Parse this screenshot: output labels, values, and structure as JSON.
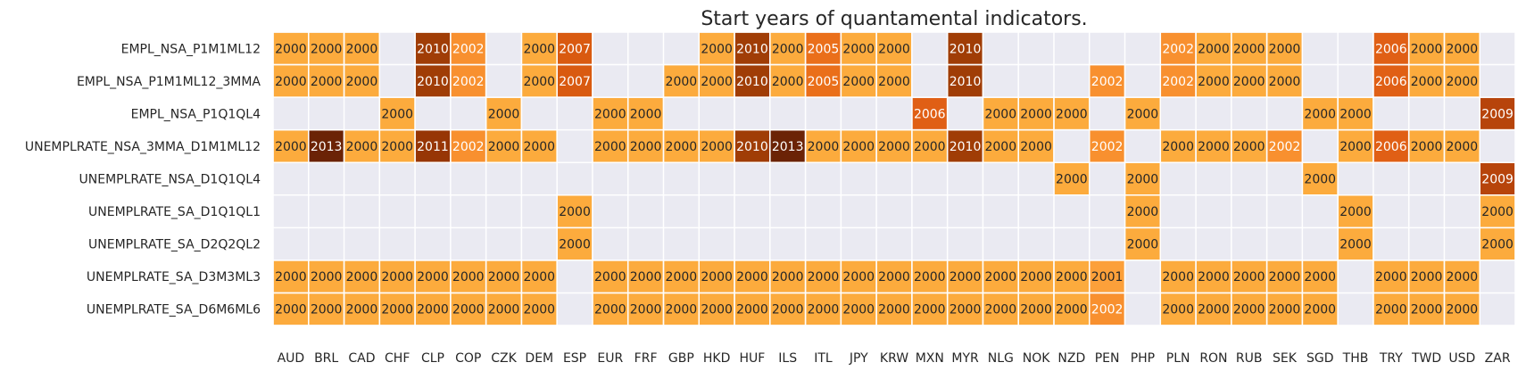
{
  "chart_data": {
    "type": "heatmap",
    "title": "Start years of quantamental indicators.",
    "xlabel": "",
    "ylabel": "",
    "x": [
      "AUD",
      "BRL",
      "CAD",
      "CHF",
      "CLP",
      "COP",
      "CZK",
      "DEM",
      "ESP",
      "EUR",
      "FRF",
      "GBP",
      "HKD",
      "HUF",
      "ILS",
      "ITL",
      "JPY",
      "KRW",
      "MXN",
      "MYR",
      "NLG",
      "NOK",
      "NZD",
      "PEN",
      "PHP",
      "PLN",
      "RON",
      "RUB",
      "SEK",
      "SGD",
      "THB",
      "TRY",
      "TWD",
      "USD",
      "ZAR"
    ],
    "y": [
      "EMPL_NSA_P1M1ML12",
      "EMPL_NSA_P1M1ML12_3MMA",
      "EMPL_NSA_P1Q1QL4",
      "UNEMPLRATE_NSA_3MMA_D1M1ML12",
      "UNEMPLRATE_NSA_D1Q1QL4",
      "UNEMPLRATE_SA_D1Q1QL1",
      "UNEMPLRATE_SA_D2Q2QL2",
      "UNEMPLRATE_SA_D3M3ML3",
      "UNEMPLRATE_SA_D6M6ML6"
    ],
    "values": [
      [
        2000,
        2000,
        2000,
        null,
        2010,
        2002,
        null,
        2000,
        2007,
        null,
        null,
        null,
        2000,
        2010,
        2000,
        2005,
        2000,
        2000,
        null,
        2010,
        null,
        null,
        null,
        null,
        null,
        2002,
        2000,
        2000,
        2000,
        null,
        null,
        2006,
        2000,
        2000,
        null
      ],
      [
        2000,
        2000,
        2000,
        null,
        2010,
        2002,
        null,
        2000,
        2007,
        null,
        null,
        2000,
        2000,
        2010,
        2000,
        2005,
        2000,
        2000,
        null,
        2010,
        null,
        null,
        null,
        2002,
        null,
        2002,
        2000,
        2000,
        2000,
        null,
        null,
        2006,
        2000,
        2000,
        null
      ],
      [
        null,
        null,
        null,
        2000,
        null,
        null,
        2000,
        null,
        null,
        2000,
        2000,
        null,
        null,
        null,
        null,
        null,
        null,
        null,
        2006,
        null,
        2000,
        2000,
        2000,
        null,
        2000,
        null,
        null,
        null,
        null,
        2000,
        2000,
        null,
        null,
        null,
        2009
      ],
      [
        2000,
        2013,
        2000,
        2000,
        2011,
        2002,
        2000,
        2000,
        null,
        2000,
        2000,
        2000,
        2000,
        2010,
        2013,
        2000,
        2000,
        2000,
        2000,
        2010,
        2000,
        2000,
        null,
        2002,
        null,
        2000,
        2000,
        2000,
        2002,
        null,
        2000,
        2006,
        2000,
        2000,
        null
      ],
      [
        null,
        null,
        null,
        null,
        null,
        null,
        null,
        null,
        null,
        null,
        null,
        null,
        null,
        null,
        null,
        null,
        null,
        null,
        null,
        null,
        null,
        null,
        2000,
        null,
        2000,
        null,
        null,
        null,
        null,
        2000,
        null,
        null,
        null,
        null,
        2009
      ],
      [
        null,
        null,
        null,
        null,
        null,
        null,
        null,
        null,
        2000,
        null,
        null,
        null,
        null,
        null,
        null,
        null,
        null,
        null,
        null,
        null,
        null,
        null,
        null,
        null,
        2000,
        null,
        null,
        null,
        null,
        null,
        2000,
        null,
        null,
        null,
        2000
      ],
      [
        null,
        null,
        null,
        null,
        null,
        null,
        null,
        null,
        2000,
        null,
        null,
        null,
        null,
        null,
        null,
        null,
        null,
        null,
        null,
        null,
        null,
        null,
        null,
        null,
        2000,
        null,
        null,
        null,
        null,
        null,
        2000,
        null,
        null,
        null,
        2000
      ],
      [
        2000,
        2000,
        2000,
        2000,
        2000,
        2000,
        2000,
        2000,
        null,
        2000,
        2000,
        2000,
        2000,
        2000,
        2000,
        2000,
        2000,
        2000,
        2000,
        2000,
        2000,
        2000,
        2000,
        2001,
        null,
        2000,
        2000,
        2000,
        2000,
        2000,
        null,
        2000,
        2000,
        2000,
        null
      ],
      [
        2000,
        2000,
        2000,
        2000,
        2000,
        2000,
        2000,
        2000,
        null,
        2000,
        2000,
        2000,
        2000,
        2000,
        2000,
        2000,
        2000,
        2000,
        2000,
        2000,
        2000,
        2000,
        2000,
        2002,
        null,
        2000,
        2000,
        2000,
        2000,
        2000,
        null,
        2000,
        2000,
        2000,
        null
      ]
    ],
    "color_scale": {
      "2000": "#fcab3d",
      "2001": "#fca03a",
      "2002": "#f8902f",
      "2005": "#ea6f1a",
      "2006": "#e05f15",
      "2007": "#d95a10",
      "2009": "#b7440b",
      "2010": "#a03d06",
      "2011": "#973605",
      "2013": "#6b2306"
    },
    "missing_color": "#eaeaf2",
    "gap_color": "#ffffff",
    "grid": true
  }
}
